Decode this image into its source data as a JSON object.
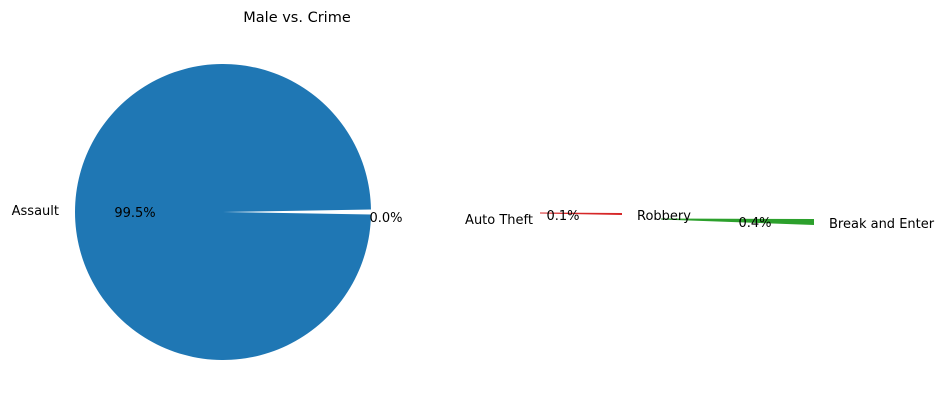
{
  "chart_data": {
    "type": "pie",
    "title": "Male vs. Crime",
    "slices": [
      {
        "label": "Assault",
        "percent": 99.5,
        "pct_label": "99.5%",
        "color": "#1f77b4",
        "explode": false
      },
      {
        "label": "Auto Theft",
        "percent": 0.04,
        "pct_label": "0.0%",
        "color": "#ff7f0e",
        "explode": true
      },
      {
        "label": "Robbery",
        "percent": 0.1,
        "pct_label": "0.1%",
        "color": "#d62728",
        "explode": true
      },
      {
        "label": "Break and Enter",
        "percent": 0.4,
        "pct_label": "0.4%",
        "color": "#2ca02c",
        "explode": true
      }
    ]
  }
}
